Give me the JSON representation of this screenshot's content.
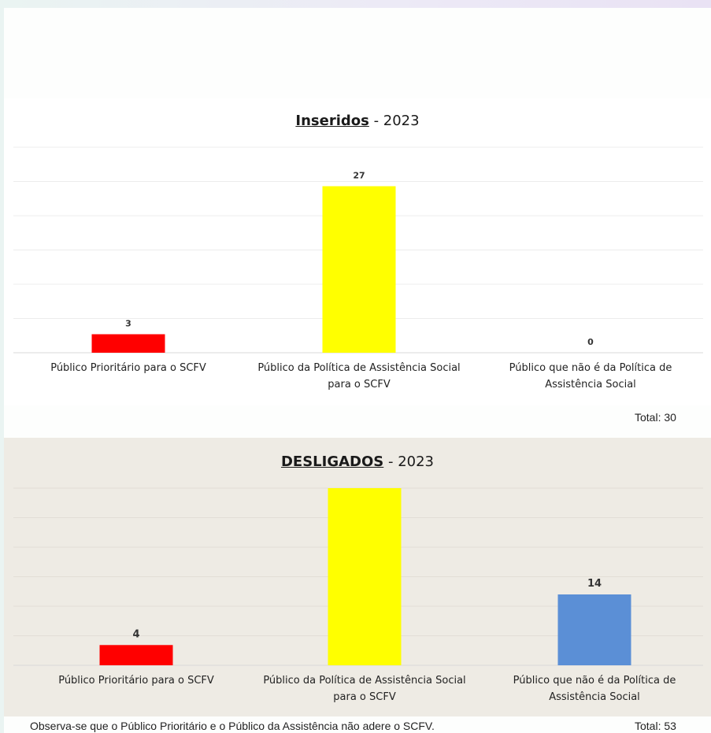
{
  "chart_data": [
    {
      "type": "bar",
      "title_bold": "Inseridos",
      "title_rest": " - 2023",
      "categories": [
        [
          "Público Prioritário para o SCFV"
        ],
        [
          "Público da Política de Assistência Social",
          "para o SCFV"
        ],
        [
          "Público que não é da Política de",
          "Assistência Social"
        ]
      ],
      "values": [
        3,
        27,
        0
      ],
      "value_labels": [
        "3",
        "27",
        "0"
      ],
      "colors": [
        "#ff0000",
        "#ffff00",
        "#5b8fd6"
      ],
      "ylim": [
        0,
        30
      ],
      "grid": true,
      "total": "Total:  30"
    },
    {
      "type": "bar",
      "title_bold": "DESLIGADOS",
      "title_rest": " - 2023",
      "categories": [
        [
          "Público Prioritário para o SCFV"
        ],
        [
          "Público da Política de Assistência Social",
          "para o SCFV"
        ],
        [
          "Público que não é da Política de",
          "Assistência Social"
        ]
      ],
      "values": [
        4,
        35,
        14
      ],
      "value_labels": [
        "4",
        "",
        "14"
      ],
      "colors": [
        "#ff0000",
        "#ffff00",
        "#5b8fd6"
      ],
      "ylim": [
        0,
        35
      ],
      "grid": true,
      "total": "Total:  53"
    }
  ],
  "note": "Observa-se que o Público Prioritário e o Público da Assistência não adere o SCFV."
}
